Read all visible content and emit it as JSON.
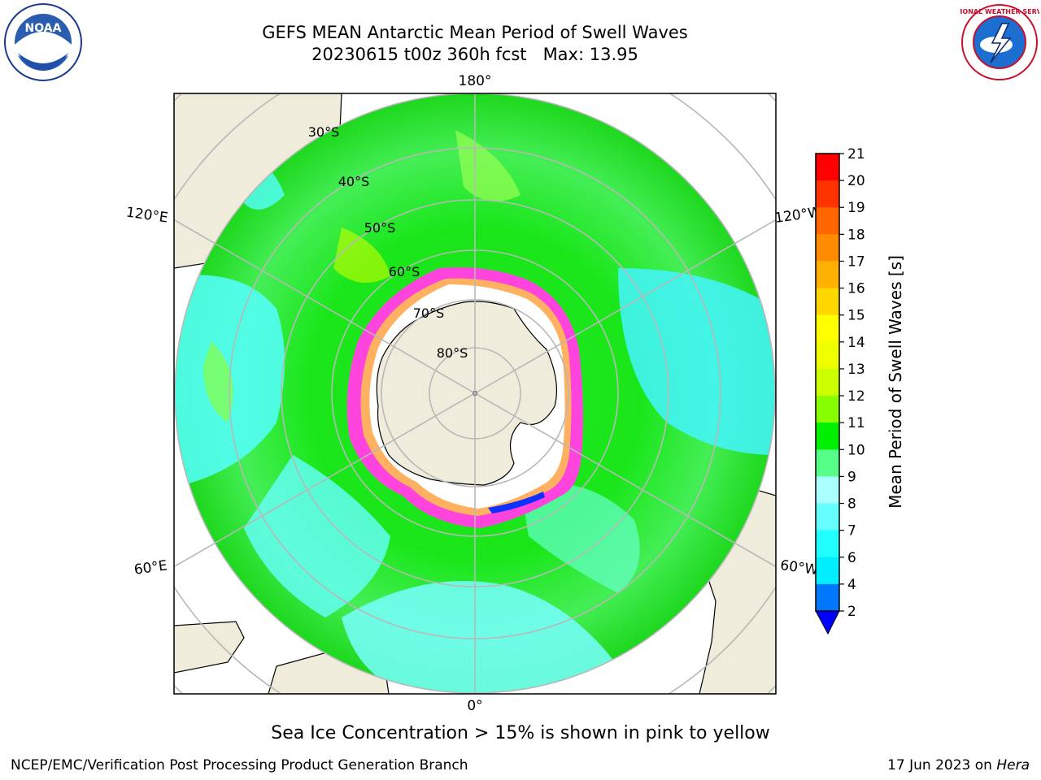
{
  "title": {
    "line1": "GEFS MEAN Antarctic Mean Period of Swell Waves",
    "line2": "20230615 t00z 360h fcst   Max: 13.95"
  },
  "map": {
    "projection": "south-polar-stereographic",
    "longitude_labels": {
      "top": "180°",
      "bottom": "0°",
      "upper_left": "120°E",
      "upper_right": "120°W",
      "lower_left": "60°E",
      "lower_right": "60°W"
    },
    "latitude_labels": [
      "30°S",
      "40°S",
      "50°S",
      "60°S",
      "70°S",
      "80°S"
    ],
    "land_color": "#efecdc",
    "sea_ice_color": "#ff44dd",
    "ocean_background": "#00f000"
  },
  "colorbar": {
    "label": "Mean Period of Swell Waves [s]",
    "ticks": [
      "21",
      "20",
      "19",
      "18",
      "17",
      "16",
      "15",
      "14",
      "13",
      "12",
      "11",
      "10",
      "9",
      "8",
      "7",
      "6",
      "4",
      "2"
    ],
    "colors_top_to_bottom": [
      "#ff0000",
      "#ff3300",
      "#ff6600",
      "#ff8c00",
      "#ffb000",
      "#ffd700",
      "#ffff00",
      "#eeff00",
      "#ccff00",
      "#88ff00",
      "#00ee00",
      "#55ff88",
      "#aaffff",
      "#66ffff",
      "#22ffff",
      "#00eeff",
      "#0077ff"
    ],
    "extend_arrow_color": "#0000ff"
  },
  "caption": "Sea Ice Concentration > 15% is shown in pink to yellow",
  "footer": {
    "left": "NCEP/EMC/Verification Post Processing Product Generation Branch",
    "date": "17 Jun 2023 on",
    "machine": "Hera"
  },
  "logos": {
    "noaa_text": "NOAA",
    "nws_text": "NATIONAL WEATHER SERVICE"
  }
}
